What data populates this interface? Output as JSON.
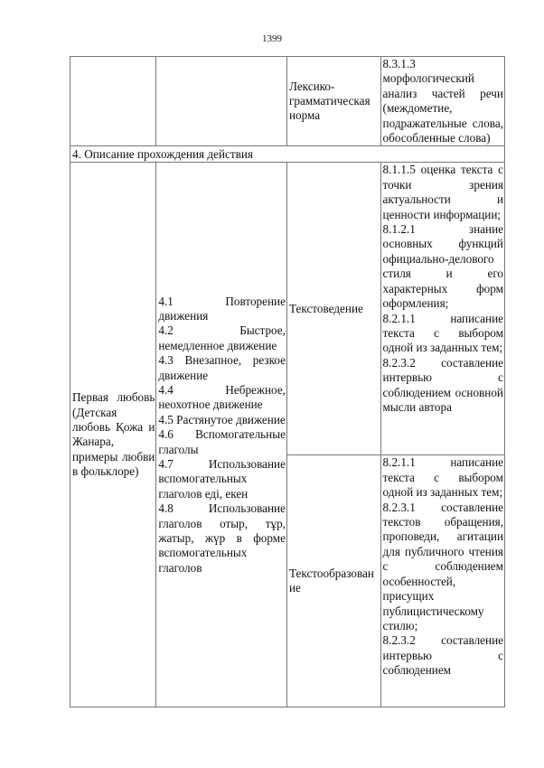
{
  "page_number": "1399",
  "table": {
    "row_continued": {
      "col3": "Лексико-грамматическая норма",
      "col4": [
        "8.3.1.3 морфологический анализ частей речи (междометие, подражательные слова, обособленные слова)"
      ]
    },
    "section_header": "4. Описание прохождения действия",
    "row_main": {
      "col1": "Первая любовь (Детская любовь Қожа и Жанара, примеры любви в фольклоре)",
      "col2": [
        "4.1 Повторение движения",
        "4.2 Быстрое, немедленное движение",
        "4.3 Внезапное, резкое движение",
        "4.4 Небрежное, неохотное движение",
        "4.5 Растянутое движение",
        "4.6 Вспомогательные глаголы",
        "4.7 Использование вспомогательных глаголов еді, екен",
        "4.8 Использование глаголов отыр, тұр, жатыр, жүр в форме вспомогательных глаголов"
      ],
      "sub_rows": [
        {
          "col3": "Текстоведение",
          "col4": [
            "8.1.1.5 оценка текста с точки зрения актуальности и ценности информации;",
            "8.1.2.1 знание основных функций официально-делового стиля и его характерных форм оформления;",
            "8.2.1.1 написание текста с выбором одной из заданных тем;",
            "8.2.3.2 составление интервью с соблюдением основной мысли автора"
          ]
        },
        {
          "col3": "Текстообразование",
          "col4": [
            "8.2.1.1 написание текста с выбором одной из заданных тем;",
            "8.2.3.1 составление текстов обращения, проповеди, агитации для публичного чтения с соблюдением особенностей, присущих публицистическому стилю;",
            "8.2.3.2 составление интервью с соблюдением"
          ]
        }
      ]
    }
  }
}
